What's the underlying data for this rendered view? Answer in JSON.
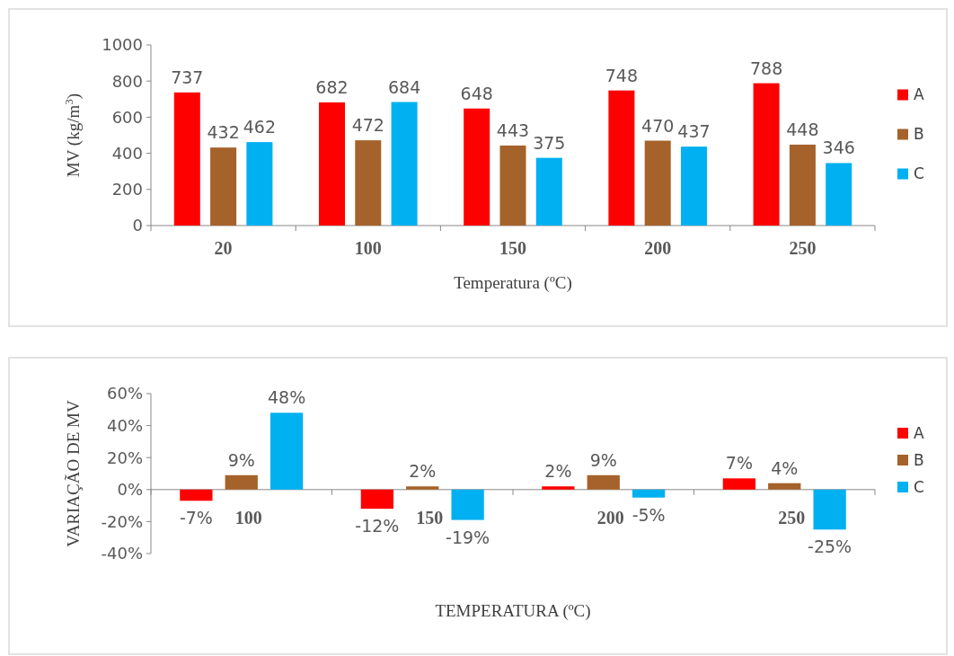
{
  "chart_data": [
    {
      "type": "bar",
      "ylabel": "MV (kg/m$^{3}$)",
      "xlabel": "Temperatura (ºC)",
      "categories": [
        "20",
        "100",
        "150",
        "200",
        "250"
      ],
      "series": [
        {
          "name": "A",
          "color": "#ff0000",
          "values": [
            737,
            682,
            648,
            748,
            788
          ]
        },
        {
          "name": "B",
          "color": "#a5622a",
          "values": [
            432,
            472,
            443,
            470,
            448
          ]
        },
        {
          "name": "C",
          "color": "#00b0f0",
          "values": [
            462,
            684,
            375,
            437,
            346
          ]
        }
      ],
      "ylim": [
        0,
        1000
      ],
      "yticks": [
        0,
        200,
        400,
        600,
        800,
        1000
      ],
      "data_labels": true,
      "legend": "right"
    },
    {
      "type": "bar",
      "ylabel": "VARIAÇÃO DE MV",
      "xlabel": "TEMPERATURA (ºC)",
      "categories": [
        "100",
        "150",
        "200",
        "250"
      ],
      "series": [
        {
          "name": "A",
          "color": "#ff0000",
          "values": [
            -7,
            -12,
            2,
            7
          ],
          "value_labels": [
            "-7%",
            "-12%",
            "2%",
            "7%"
          ]
        },
        {
          "name": "B",
          "color": "#a5622a",
          "values": [
            9,
            2,
            9,
            4
          ],
          "value_labels": [
            "9%",
            "2%",
            "9%",
            "4%"
          ]
        },
        {
          "name": "C",
          "color": "#00b0f0",
          "values": [
            48,
            -19,
            -5,
            -25
          ],
          "value_labels": [
            "48%",
            "-19%",
            "-5%",
            "-25%"
          ]
        }
      ],
      "ylim": [
        -40,
        60
      ],
      "yticks": [
        {
          "value": -40,
          "label": "-40%"
        },
        {
          "value": -20,
          "label": "-20%"
        },
        {
          "value": 0,
          "label": "0%"
        },
        {
          "value": 20,
          "label": "20%"
        },
        {
          "value": 40,
          "label": "40%"
        },
        {
          "value": 60,
          "label": "60%"
        }
      ],
      "legend": "right"
    }
  ]
}
